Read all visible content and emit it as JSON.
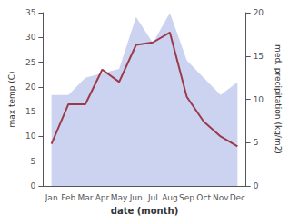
{
  "chart_data": {
    "type": "line",
    "categories": [
      "Jan",
      "Feb",
      "Mar",
      "Apr",
      "May",
      "Jun",
      "Jul",
      "Aug",
      "Sep",
      "Oct",
      "Nov",
      "Dec"
    ],
    "xlabel": "date (month)",
    "ylabel": "max temp (C)",
    "y2label": "med. precipitation (kg/m2)",
    "series": [
      {
        "type": "area",
        "axis": "y2",
        "color": "#b0bce8",
        "values": [
          10.5,
          10.5,
          12.5,
          13.0,
          13.5,
          19.5,
          16.5,
          20.0,
          14.5,
          12.5,
          10.5,
          12.0
        ]
      },
      {
        "type": "line",
        "color": "#9b3a4a",
        "values": [
          8.5,
          16.5,
          16.5,
          23.5,
          21.0,
          28.5,
          29.0,
          31.0,
          18.0,
          13.0,
          10.0,
          8.0
        ]
      }
    ],
    "ylim": [
      0,
      35
    ],
    "yticks": [
      0,
      5,
      10,
      15,
      20,
      25,
      30,
      35
    ],
    "y2lim": [
      0,
      20
    ],
    "y2ticks": [
      0,
      5,
      10,
      15,
      20
    ],
    "grid": false
  }
}
